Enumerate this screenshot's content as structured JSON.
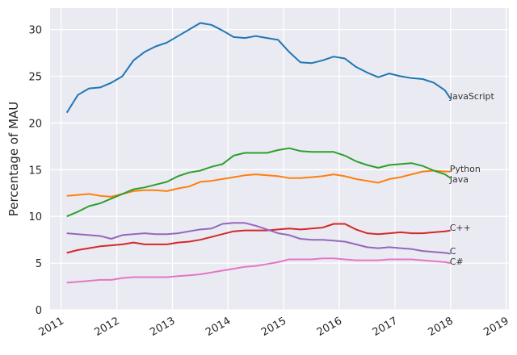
{
  "chart_data": {
    "type": "line",
    "title": "",
    "xlabel": "",
    "ylabel": "Percentage of MAU",
    "xlim": [
      2010.8,
      2019.05
    ],
    "ylim": [
      0,
      32.3
    ],
    "grid": true,
    "background": "#eaeaf2",
    "legend": "none (inline labels at line ends)",
    "x_ticks": [
      2011,
      2012,
      2013,
      2014,
      2015,
      2016,
      2017,
      2018,
      2019
    ],
    "x_tick_labels": [
      "2011",
      "2012",
      "2013",
      "2014",
      "2015",
      "2016",
      "2017",
      "2018",
      "2019"
    ],
    "y_ticks": [
      0,
      5,
      10,
      15,
      20,
      25,
      30
    ],
    "y_tick_labels": [
      "0",
      "5",
      "10",
      "15",
      "20",
      "25",
      "30"
    ],
    "x": [
      2011.1,
      2011.3,
      2011.5,
      2011.7,
      2011.9,
      2012.1,
      2012.3,
      2012.5,
      2012.7,
      2012.9,
      2013.1,
      2013.3,
      2013.5,
      2013.7,
      2013.9,
      2014.1,
      2014.3,
      2014.5,
      2014.7,
      2014.9,
      2015.1,
      2015.3,
      2015.5,
      2015.7,
      2015.9,
      2016.1,
      2016.3,
      2016.5,
      2016.7,
      2016.9,
      2017.1,
      2017.3,
      2017.5,
      2017.7,
      2017.9,
      2018.0
    ],
    "series": [
      {
        "name": "JavaScript",
        "color": "#1f77b4",
        "values": [
          21.1,
          23.0,
          23.7,
          23.8,
          24.3,
          25.0,
          26.7,
          27.6,
          28.2,
          28.6,
          29.3,
          30.0,
          30.7,
          30.5,
          29.9,
          29.2,
          29.1,
          29.3,
          29.1,
          28.9,
          27.6,
          26.5,
          26.4,
          26.7,
          27.1,
          26.9,
          26.0,
          25.4,
          24.9,
          25.3,
          25.0,
          24.8,
          24.7,
          24.3,
          23.5,
          22.6
        ]
      },
      {
        "name": "Python",
        "color": "#ff7f0e",
        "values": [
          12.2,
          12.3,
          12.4,
          12.2,
          12.1,
          12.4,
          12.7,
          12.8,
          12.8,
          12.7,
          13.0,
          13.2,
          13.7,
          13.8,
          14.0,
          14.2,
          14.4,
          14.5,
          14.4,
          14.3,
          14.1,
          14.1,
          14.2,
          14.3,
          14.5,
          14.3,
          14.0,
          13.8,
          13.6,
          14.0,
          14.2,
          14.5,
          14.8,
          14.9,
          14.8,
          14.8
        ]
      },
      {
        "name": "Java",
        "color": "#2ca02c",
        "values": [
          10.0,
          10.5,
          11.1,
          11.4,
          11.9,
          12.4,
          12.9,
          13.1,
          13.4,
          13.7,
          14.3,
          14.7,
          14.9,
          15.3,
          15.6,
          16.5,
          16.8,
          16.8,
          16.8,
          17.1,
          17.3,
          17.0,
          16.9,
          16.9,
          16.9,
          16.5,
          15.9,
          15.5,
          15.2,
          15.5,
          15.6,
          15.7,
          15.4,
          14.9,
          14.5,
          14.1
        ]
      },
      {
        "name": "C++",
        "color": "#d62728",
        "values": [
          6.1,
          6.4,
          6.6,
          6.8,
          6.9,
          7.0,
          7.2,
          7.0,
          7.0,
          7.0,
          7.2,
          7.3,
          7.5,
          7.8,
          8.1,
          8.4,
          8.5,
          8.5,
          8.5,
          8.6,
          8.7,
          8.6,
          8.7,
          8.8,
          9.2,
          9.2,
          8.6,
          8.2,
          8.1,
          8.2,
          8.3,
          8.2,
          8.2,
          8.3,
          8.4,
          8.5
        ]
      },
      {
        "name": "C",
        "color": "#9467bd",
        "values": [
          8.2,
          8.1,
          8.0,
          7.9,
          7.6,
          8.0,
          8.1,
          8.2,
          8.1,
          8.1,
          8.2,
          8.4,
          8.6,
          8.7,
          9.2,
          9.3,
          9.3,
          9.0,
          8.6,
          8.2,
          8.0,
          7.6,
          7.5,
          7.5,
          7.4,
          7.3,
          7.0,
          6.7,
          6.6,
          6.7,
          6.6,
          6.5,
          6.3,
          6.2,
          6.1,
          6.0
        ]
      },
      {
        "name": "C#",
        "color": "#e377c2",
        "values": [
          2.9,
          3.0,
          3.1,
          3.2,
          3.2,
          3.4,
          3.5,
          3.5,
          3.5,
          3.5,
          3.6,
          3.7,
          3.8,
          4.0,
          4.2,
          4.4,
          4.6,
          4.7,
          4.9,
          5.1,
          5.4,
          5.4,
          5.4,
          5.5,
          5.5,
          5.4,
          5.3,
          5.3,
          5.3,
          5.4,
          5.4,
          5.4,
          5.3,
          5.2,
          5.1,
          5.0
        ]
      }
    ]
  }
}
